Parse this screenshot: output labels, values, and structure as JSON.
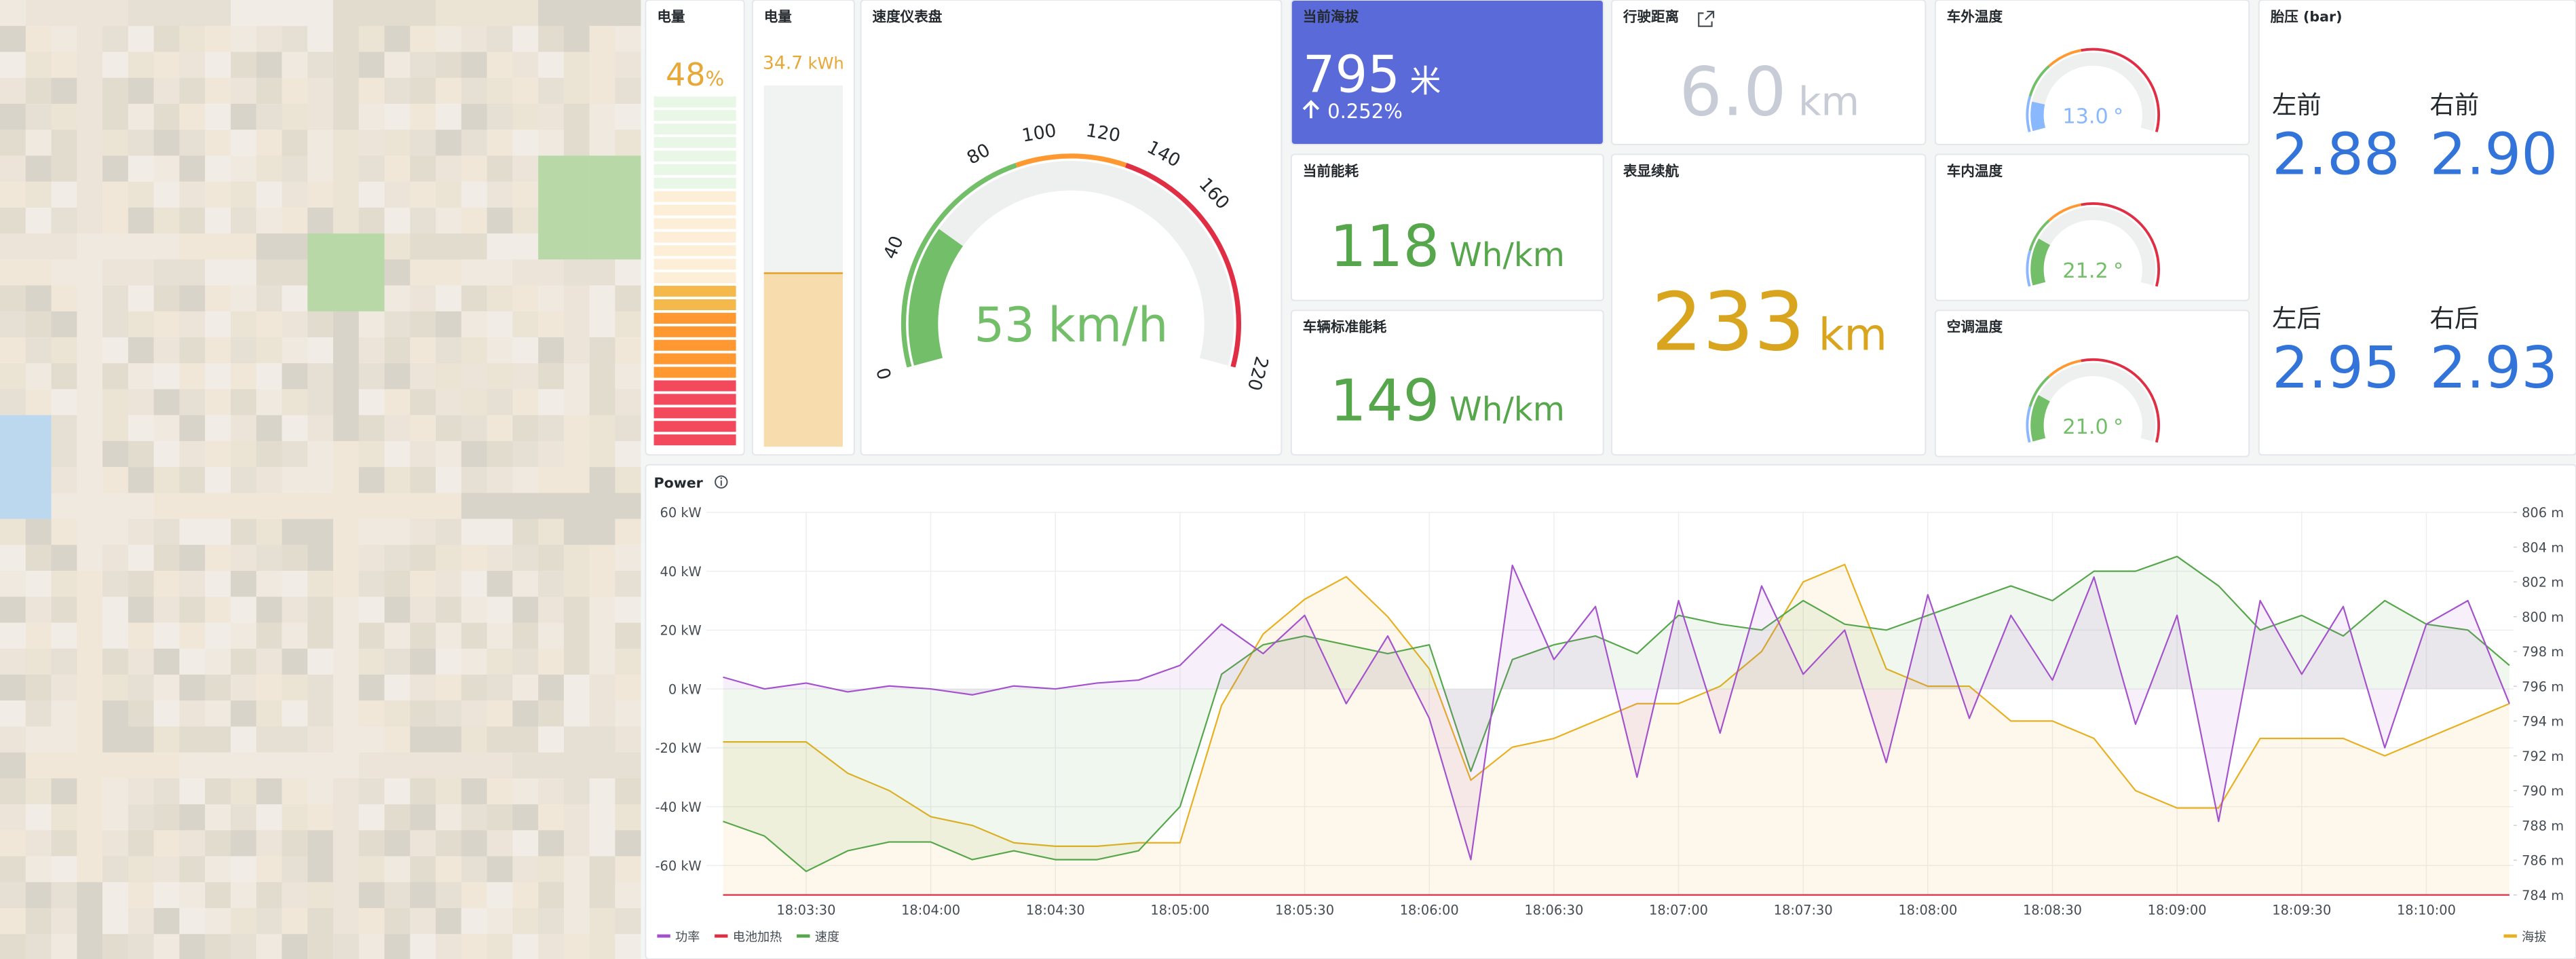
{
  "panels": {
    "battery": {
      "title": "电量",
      "value": 48,
      "unit": "%",
      "color": "#e8a838",
      "thresholds": [
        {
          "value": 0,
          "color": "#f2495c"
        },
        {
          "value": 20,
          "color": "#ff9830"
        },
        {
          "value": 40,
          "color": "#f5b84a"
        },
        {
          "value": 75,
          "color": "#96d98d"
        }
      ]
    },
    "energy": {
      "title": "电量",
      "value": 34.7,
      "unit": "kWh",
      "color": "#e8a838"
    },
    "speed": {
      "title": "速度仪表盘",
      "value": 53,
      "unit": "km/h",
      "ticks": [
        0,
        40,
        80,
        100,
        120,
        140,
        160,
        220
      ],
      "thresholds": [
        {
          "value": 0,
          "color": "#73bf69"
        },
        {
          "value": 90,
          "color": "#ff9830"
        },
        {
          "value": 130,
          "color": "#e02f44"
        }
      ]
    },
    "altitude": {
      "title": "当前海拔",
      "value": 795,
      "unit": "米",
      "change": "0.252%",
      "color": "#5a6bd9"
    },
    "distance": {
      "title": "行驶距离",
      "value": "6.0",
      "unit": "km",
      "color": "#c7ccd6"
    },
    "outside_temp": {
      "title": "车外温度",
      "value": {
        "value": 13,
        "label": "13.0"
      },
      "unit": "°",
      "range": [
        0,
        100
      ],
      "thresholds": [
        {
          "value": 0,
          "color": "#8ab8ff"
        },
        {
          "value": 15,
          "color": "#73bf69"
        },
        {
          "value": 30,
          "color": "#ff9830"
        },
        {
          "value": 45,
          "color": "#e02f44"
        }
      ]
    },
    "tires": {
      "title": "胎压 (bar)",
      "color": "#3274d9",
      "items": [
        {
          "name": "左前",
          "value": "2.88"
        },
        {
          "name": "右前",
          "value": "2.90"
        },
        {
          "name": "左后",
          "value": "2.95"
        },
        {
          "name": "右后",
          "value": "2.93"
        }
      ]
    },
    "consumption": {
      "title": "当前能耗",
      "value": 118,
      "unit": "Wh/km",
      "color": "#56a64b"
    },
    "standard_consumption": {
      "title": "车辆标准能耗",
      "value": 149,
      "unit": "Wh/km",
      "color": "#56a64b"
    },
    "range_display": {
      "title": "表显续航",
      "value": 233,
      "unit": "km",
      "color": "#d9a51f"
    },
    "inside_temp": {
      "title": "车内温度",
      "value": {
        "value": 21.2,
        "label": "21.2"
      },
      "unit": "°",
      "range": [
        0,
        100
      ],
      "thresholds": [
        {
          "value": 0,
          "color": "#8ab8ff"
        },
        {
          "value": 15,
          "color": "#73bf69"
        },
        {
          "value": 30,
          "color": "#ff9830"
        },
        {
          "value": 45,
          "color": "#e02f44"
        }
      ]
    },
    "ac_temp": {
      "title": "空调温度",
      "value": {
        "value": 21,
        "label": "21.0"
      },
      "unit": "°",
      "range": [
        0,
        100
      ],
      "thresholds": [
        {
          "value": 0,
          "color": "#8ab8ff"
        },
        {
          "value": 15,
          "color": "#73bf69"
        },
        {
          "value": 30,
          "color": "#ff9830"
        },
        {
          "value": 45,
          "color": "#e02f44"
        }
      ]
    }
  },
  "chart_data": {
    "type": "line",
    "title": "Power",
    "x": [
      64990,
      65000,
      65010,
      65020,
      65030,
      65040,
      65050,
      65060,
      65070,
      65080,
      65090,
      65100,
      65110,
      65120,
      65130,
      65140,
      65150,
      65160,
      65170,
      65180,
      65190,
      65200,
      65210,
      65220,
      65230,
      65240,
      65250,
      65260,
      65270,
      65280,
      65290,
      65300,
      65310,
      65320,
      65330,
      65340,
      65350,
      65360,
      65370,
      65380,
      65390,
      65400,
      65410,
      65420
    ],
    "xlim": [
      64986,
      65421
    ],
    "xticks": [
      {
        "value": 65010,
        "label": "18:03:30"
      },
      {
        "value": 65040,
        "label": "18:04:00"
      },
      {
        "value": 65070,
        "label": "18:04:30"
      },
      {
        "value": 65100,
        "label": "18:05:00"
      },
      {
        "value": 65130,
        "label": "18:05:30"
      },
      {
        "value": 65160,
        "label": "18:06:00"
      },
      {
        "value": 65190,
        "label": "18:06:30"
      },
      {
        "value": 65220,
        "label": "18:07:00"
      },
      {
        "value": 65250,
        "label": "18:07:30"
      },
      {
        "value": 65280,
        "label": "18:08:00"
      },
      {
        "value": 65310,
        "label": "18:08:30"
      },
      {
        "value": 65340,
        "label": "18:09:00"
      },
      {
        "value": 65370,
        "label": "18:09:30"
      },
      {
        "value": 65400,
        "label": "18:10:00"
      }
    ],
    "ylim": [
      -70,
      60
    ],
    "yticks": [
      {
        "value": 60,
        "label": "60 kW"
      },
      {
        "value": 40,
        "label": "40 kW"
      },
      {
        "value": 20,
        "label": "20 kW"
      },
      {
        "value": 0,
        "label": "0 kW"
      },
      {
        "value": -20,
        "label": "-20 kW"
      },
      {
        "value": -40,
        "label": "-40 kW"
      },
      {
        "value": -60,
        "label": "-60 kW"
      }
    ],
    "y2lim": [
      784,
      806
    ],
    "y2ticks": [
      {
        "value": 806,
        "label": "806 m"
      },
      {
        "value": 804,
        "label": "804 m"
      },
      {
        "value": 802,
        "label": "802 m"
      },
      {
        "value": 800,
        "label": "800 m"
      },
      {
        "value": 798,
        "label": "798 m"
      },
      {
        "value": 796,
        "label": "796 m"
      },
      {
        "value": 794,
        "label": "794 m"
      },
      {
        "value": 792,
        "label": "792 m"
      },
      {
        "value": 790,
        "label": "790 m"
      },
      {
        "value": 788,
        "label": "788 m"
      },
      {
        "value": 786,
        "label": "786 m"
      },
      {
        "value": 784,
        "label": "784 m"
      }
    ],
    "y3lim": [
      0,
      1
    ],
    "grid": true,
    "series": [
      {
        "name": "功率",
        "color": "#a352cc",
        "fill": true,
        "values": [
          4,
          0,
          2,
          -1,
          1,
          0,
          -2,
          1,
          0,
          2,
          3,
          8,
          22,
          12,
          25,
          -5,
          18,
          -10,
          -58,
          42,
          10,
          28,
          -30,
          30,
          -15,
          35,
          5,
          20,
          -25,
          32,
          -10,
          25,
          3,
          38,
          -12,
          25,
          -45,
          30,
          5,
          28,
          -20,
          22,
          30,
          -5
        ]
      },
      {
        "name": "电池加热",
        "color": "#e02f44",
        "axis": "y3",
        "values": [
          0,
          0,
          0,
          0,
          0,
          0,
          0,
          0,
          0,
          0,
          0,
          0,
          0,
          0,
          0,
          0,
          0,
          0,
          0,
          0,
          0,
          0,
          0,
          0,
          0,
          0,
          0,
          0,
          0,
          0,
          0,
          0,
          0,
          0,
          0,
          0,
          0,
          0,
          0,
          0,
          0,
          0,
          0,
          0
        ]
      },
      {
        "name": "速度",
        "color": "#56a64b",
        "fill": true,
        "values": [
          -45,
          -50,
          -62,
          -55,
          -52,
          -52,
          -58,
          -55,
          -58,
          -58,
          -55,
          -40,
          5,
          15,
          18,
          15,
          12,
          15,
          -28,
          10,
          15,
          18,
          12,
          25,
          22,
          20,
          30,
          22,
          20,
          25,
          30,
          35,
          30,
          40,
          40,
          45,
          35,
          20,
          25,
          18,
          30,
          22,
          20,
          8
        ]
      },
      {
        "name": "海拔",
        "color": "#e8b020",
        "axis": "y2",
        "fill": true,
        "legend": "right",
        "values": [
          792.8,
          792.8,
          792.8,
          791,
          790,
          788.5,
          788,
          787,
          786.8,
          786.8,
          787,
          787,
          794.9,
          799,
          801,
          802.3,
          800,
          797,
          790.6,
          792.5,
          793,
          794,
          795,
          795,
          796,
          798,
          802,
          803,
          797,
          796,
          796,
          794,
          794,
          793,
          790,
          789,
          789,
          793,
          793,
          793,
          792,
          793,
          794,
          795
        ]
      }
    ]
  }
}
